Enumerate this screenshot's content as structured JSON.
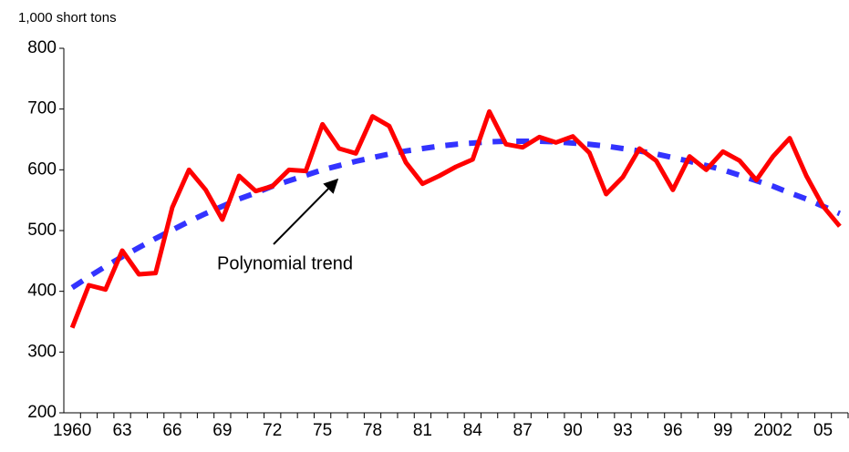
{
  "chart_data": {
    "type": "line",
    "y_label": "1,000 short tons",
    "annotation": "Polynomial trend",
    "categories": [
      "1960",
      null,
      null,
      "63",
      null,
      null,
      "66",
      null,
      null,
      "69",
      null,
      null,
      "72",
      null,
      null,
      "75",
      null,
      null,
      "78",
      null,
      null,
      "81",
      null,
      null,
      "84",
      null,
      null,
      "87",
      null,
      null,
      "90",
      null,
      null,
      "93",
      null,
      null,
      "96",
      null,
      null,
      "99",
      null,
      null,
      "2002",
      null,
      null,
      "05",
      null
    ],
    "series": [
      {
        "color": "#ff0000",
        "style": "solid",
        "values": [
          340,
          410,
          403,
          467,
          428,
          430,
          538,
          600,
          567,
          518,
          590,
          565,
          573,
          600,
          598,
          675,
          635,
          627,
          688,
          672,
          612,
          577,
          590,
          605,
          617,
          696,
          642,
          637,
          654,
          645,
          655,
          628,
          560,
          588,
          635,
          615,
          567,
          622,
          600,
          630,
          615,
          583,
          622,
          652,
          590,
          540,
          507
        ]
      },
      {
        "color": "#3333ff",
        "style": "dashed",
        "values": [
          406,
          424,
          441,
          457,
          472,
          487,
          501,
          515,
          528,
          540,
          552,
          562,
          573,
          582,
          591,
          600,
          607,
          614,
          620,
          626,
          631,
          635,
          639,
          642,
          644,
          646,
          647,
          647,
          647,
          646,
          644,
          642,
          639,
          635,
          631,
          626,
          620,
          614,
          607,
          600,
          591,
          582,
          573,
          562,
          552,
          540,
          528
        ]
      }
    ],
    "ylim": [
      200,
      800
    ],
    "yticks": [
      200,
      300,
      400,
      500,
      600,
      700,
      800
    ],
    "grid": false
  }
}
